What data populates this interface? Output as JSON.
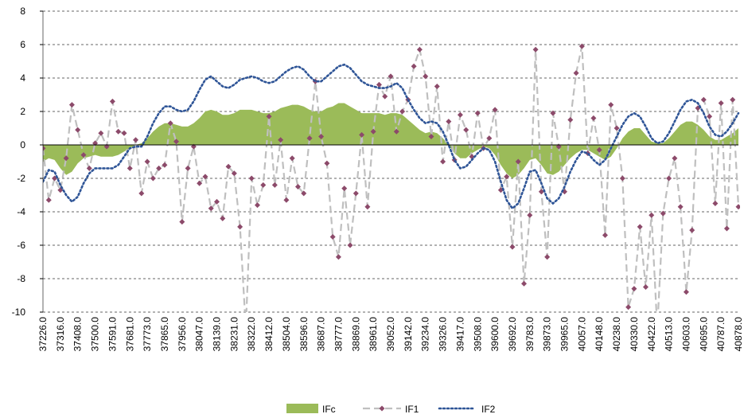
{
  "chart_data": {
    "type": "line",
    "categories": [
      "37226.0",
      null,
      null,
      "37316.0",
      null,
      null,
      "37408.0",
      null,
      null,
      "37500.0",
      null,
      null,
      "37591.0",
      null,
      null,
      "37681.0",
      null,
      null,
      "37773.0",
      null,
      null,
      "37865.0",
      null,
      null,
      "37956.0",
      null,
      null,
      "38047.0",
      null,
      null,
      "38139.0",
      null,
      null,
      "38231.0",
      null,
      null,
      "38322.0",
      null,
      null,
      "38412.0",
      null,
      null,
      "38504.0",
      null,
      null,
      "38596.0",
      null,
      null,
      "38687.0",
      null,
      null,
      "38777.0",
      null,
      null,
      "38869.0",
      null,
      null,
      "38961.0",
      null,
      null,
      "39052.0",
      null,
      null,
      "39142.0",
      null,
      null,
      "39234.0",
      null,
      null,
      "39326.0",
      null,
      null,
      "39417.0",
      null,
      null,
      "39508.0",
      null,
      null,
      "39600.0",
      null,
      null,
      "39692.0",
      null,
      null,
      "39783.0",
      null,
      null,
      "39873.0",
      null,
      null,
      "39965.0",
      null,
      null,
      "40057.0",
      null,
      null,
      "40148.0",
      null,
      null,
      "40238.0",
      null,
      null,
      "40330.0",
      null,
      null,
      "40422.0",
      null,
      null,
      "40513.0",
      null,
      null,
      "40603.0",
      null,
      null,
      "40695.0",
      null,
      null,
      "40787.0",
      null,
      null,
      "40878.0"
    ],
    "series": [
      {
        "name": "IFc",
        "kind": "area",
        "color": "#9bbb59",
        "values": [
          -1.0,
          -0.8,
          -0.9,
          -1.4,
          -1.8,
          -1.6,
          -1.1,
          -0.8,
          -0.7,
          -0.6,
          -0.7,
          -0.7,
          -0.7,
          -0.6,
          -0.4,
          -0.2,
          0.0,
          0.1,
          0.4,
          0.8,
          1.1,
          1.3,
          1.3,
          1.2,
          1.1,
          1.1,
          1.3,
          1.6,
          2.0,
          2.1,
          2.0,
          1.8,
          1.8,
          1.9,
          2.1,
          2.1,
          2.1,
          2.0,
          1.9,
          1.9,
          2.0,
          2.2,
          2.3,
          2.4,
          2.4,
          2.3,
          2.1,
          2.0,
          2.0,
          2.2,
          2.3,
          2.5,
          2.5,
          2.3,
          2.1,
          1.9,
          1.9,
          1.9,
          1.9,
          1.8,
          1.9,
          1.9,
          1.8,
          1.5,
          1.2,
          0.9,
          0.7,
          0.8,
          0.7,
          0.4,
          0.0,
          -0.5,
          -0.8,
          -0.8,
          -0.5,
          -0.3,
          -0.1,
          -0.2,
          -0.6,
          -1.2,
          -1.7,
          -2.0,
          -1.8,
          -1.4,
          -0.9,
          -0.8,
          -1.2,
          -1.7,
          -1.8,
          -1.6,
          -1.2,
          -0.8,
          -0.5,
          -0.3,
          -0.3,
          -0.5,
          -0.7,
          -0.9,
          -0.7,
          -0.2,
          0.4,
          0.8,
          1.0,
          1.0,
          0.6,
          0.2,
          0.1,
          0.1,
          0.4,
          0.8,
          1.2,
          1.4,
          1.4,
          1.2,
          0.9,
          0.5,
          0.3,
          0.3,
          0.5,
          0.7,
          1.0
        ]
      },
      {
        "name": "IF1",
        "kind": "dashed-marker",
        "color": "#bfbfbf",
        "marker_color": "#8c4a6a",
        "values": [
          -0.2,
          -3.3,
          -2.0,
          -2.7,
          -0.8,
          2.4,
          0.9,
          -0.6,
          -1.4,
          0.1,
          0.7,
          -0.1,
          2.6,
          0.8,
          0.7,
          -1.4,
          0.3,
          -2.9,
          -1.0,
          -2.0,
          -1.4,
          -1.2,
          1.3,
          0.2,
          -4.6,
          -1.4,
          -0.1,
          -2.3,
          -1.9,
          -3.8,
          -3.4,
          -4.4,
          -1.3,
          -1.7,
          -4.9,
          -11,
          -2.0,
          -3.6,
          -2.4,
          1.7,
          -2.4,
          0.3,
          -3.3,
          -0.8,
          -2.5,
          -2.9,
          0.4,
          3.8,
          0.5,
          -1.1,
          -5.5,
          -6.7,
          -2.6,
          -6.0,
          -2.9,
          0.6,
          -3.7,
          0.8,
          3.6,
          2.9,
          4.1,
          0.8,
          2.0,
          2.7,
          4.7,
          5.7,
          4.1,
          0.5,
          3.5,
          -1.0,
          1.4,
          -0.9,
          1.8,
          0.9,
          -0.7,
          1.9,
          -0.2,
          0.4,
          2.1,
          -2.7,
          -1.9,
          -6.1,
          -1.0,
          -8.3,
          -4.2,
          5.7,
          -2.8,
          -6.7,
          1.9,
          -0.1,
          -2.8,
          1.5,
          4.3,
          5.9,
          -0.5,
          1.6,
          -0.3,
          -5.4,
          2.4,
          1.0,
          -2.0,
          -9.7,
          -8.6,
          -4.9,
          -8.5,
          -4.2,
          -11,
          -4.1,
          -2.0,
          -0.8,
          -3.7,
          -8.8,
          -5.1,
          2.2,
          2.7,
          1.7,
          -3.5,
          2.5,
          -5.0,
          2.7,
          -3.7
        ]
      },
      {
        "name": "IF2",
        "kind": "dotted",
        "color": "#2f5597",
        "values": [
          -2.2,
          -1.5,
          -1.6,
          -2.4,
          -3.0,
          -3.4,
          -3.1,
          -2.3,
          -1.7,
          -1.4,
          -1.4,
          -1.4,
          -1.4,
          -1.2,
          -0.7,
          -0.2,
          -0.1,
          -0.1,
          0.5,
          1.3,
          1.9,
          2.3,
          2.3,
          2.1,
          2.0,
          2.1,
          2.6,
          3.3,
          3.9,
          4.1,
          3.8,
          3.5,
          3.4,
          3.6,
          3.9,
          4.0,
          4.1,
          4.0,
          3.8,
          3.7,
          3.8,
          4.1,
          4.4,
          4.6,
          4.7,
          4.5,
          4.1,
          3.8,
          3.8,
          4.1,
          4.4,
          4.7,
          4.8,
          4.6,
          4.2,
          3.8,
          3.6,
          3.5,
          3.4,
          3.4,
          3.5,
          3.7,
          3.4,
          2.7,
          2.1,
          1.6,
          1.3,
          1.4,
          1.3,
          0.8,
          0.0,
          -0.9,
          -1.4,
          -1.3,
          -0.9,
          -0.5,
          -0.2,
          -0.3,
          -1.0,
          -2.2,
          -3.3,
          -3.8,
          -3.5,
          -2.6,
          -1.6,
          -1.5,
          -2.3,
          -3.2,
          -3.5,
          -3.2,
          -2.5,
          -1.6,
          -0.9,
          -0.4,
          -0.5,
          -0.9,
          -1.2,
          -0.9,
          -0.2,
          0.5,
          1.2,
          1.7,
          1.9,
          1.7,
          1.1,
          0.4,
          0.1,
          0.2,
          0.7,
          1.4,
          2.1,
          2.6,
          2.7,
          2.5,
          1.9,
          1.1,
          0.6,
          0.5,
          0.8,
          1.3,
          1.9
        ]
      }
    ],
    "ylim": [
      -10,
      8
    ],
    "yticks": [
      -10,
      -8,
      -6,
      -4,
      -2,
      0,
      2,
      4,
      6,
      8
    ],
    "grid": true,
    "legend": "bottom"
  }
}
